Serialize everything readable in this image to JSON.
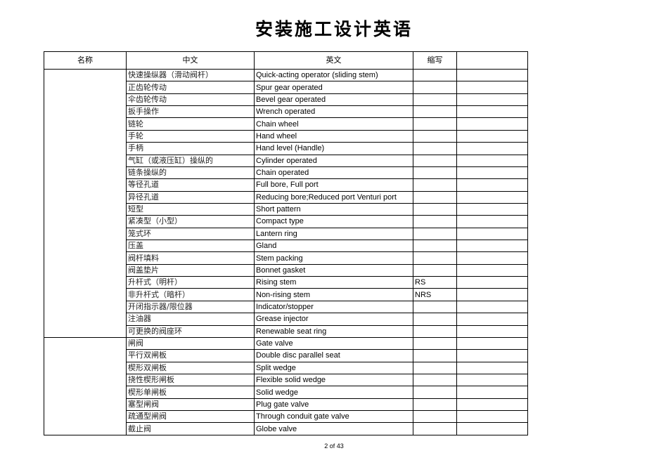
{
  "title": "安装施工设计英语",
  "headers": [
    "名称",
    "中文",
    "英文",
    "缩写",
    ""
  ],
  "groups": [
    {
      "name": "",
      "rows": [
        {
          "zh": "快速操纵器（滑动阀杆）",
          "en": "Quick-acting operator (sliding stem)",
          "abbr": ""
        },
        {
          "zh": "正齿轮传动",
          "en": "Spur gear operated",
          "abbr": ""
        },
        {
          "zh": "伞齿轮传动",
          "en": "Bevel gear operated",
          "abbr": ""
        },
        {
          "zh": "扳手操作",
          "en": "Wrench operated",
          "abbr": ""
        },
        {
          "zh": "链轮",
          "en": "Chain wheel",
          "abbr": ""
        },
        {
          "zh": "手轮",
          "en": "Hand wheel",
          "abbr": ""
        },
        {
          "zh": "手柄",
          "en": "Hand level (Handle)",
          "abbr": ""
        },
        {
          "zh": "气缸（或液压缸）操纵的",
          "en": "Cylinder operated",
          "abbr": ""
        },
        {
          "zh": "链条操纵的",
          "en": "Chain operated",
          "abbr": ""
        },
        {
          "zh": "等径孔道",
          "en": "Full bore, Full port",
          "abbr": ""
        },
        {
          "zh": "异径孔道",
          "en": "Reducing bore;Reduced port Venturi port",
          "abbr": ""
        },
        {
          "zh": "短型",
          "en": "Short pattern",
          "abbr": ""
        },
        {
          "zh": "紧凑型（小型）",
          "en": "Compact type",
          "abbr": ""
        },
        {
          "zh": "笼式环",
          "en": "Lantern ring",
          "abbr": ""
        },
        {
          "zh": "压盖",
          "en": "Gland",
          "abbr": ""
        },
        {
          "zh": "阀杆填料",
          "en": "Stem packing",
          "abbr": ""
        },
        {
          "zh": "阀盖垫片",
          "en": "Bonnet gasket",
          "abbr": ""
        },
        {
          "zh": "升杆式（明杆）",
          "en": "Rising stem",
          "abbr": "RS"
        },
        {
          "zh": "非升杆式（暗杆）",
          "en": "Non-rising stem",
          "abbr": "NRS"
        },
        {
          "zh": "开闭指示器/限位器",
          "en": "Indicator/stopper",
          "abbr": ""
        },
        {
          "zh": "注油器",
          "en": "Grease injector",
          "abbr": ""
        },
        {
          "zh": "可更换的阀座环",
          "en": "Renewable seat ring",
          "abbr": ""
        }
      ]
    },
    {
      "name": "",
      "rows": [
        {
          "zh": "闸阀",
          "en": "Gate valve",
          "abbr": ""
        },
        {
          "zh": "平行双闸板",
          "en": "Double disc parallel seat",
          "abbr": ""
        },
        {
          "zh": "楔形双闸板",
          "en": "Split wedge",
          "abbr": ""
        },
        {
          "zh": "挠性楔形闸板",
          "en": "Flexible solid wedge",
          "abbr": ""
        },
        {
          "zh": "楔形单闸板",
          "en": "Solid wedge",
          "abbr": ""
        },
        {
          "zh": "塞型闸阀",
          "en": "Plug gate valve",
          "abbr": ""
        },
        {
          "zh": "疏通型闸阀",
          "en": "Through conduit gate valve",
          "abbr": ""
        },
        {
          "zh": "截止阀",
          "en": "Globe valve",
          "abbr": ""
        }
      ]
    }
  ],
  "footer": {
    "page": "2 of 43"
  }
}
